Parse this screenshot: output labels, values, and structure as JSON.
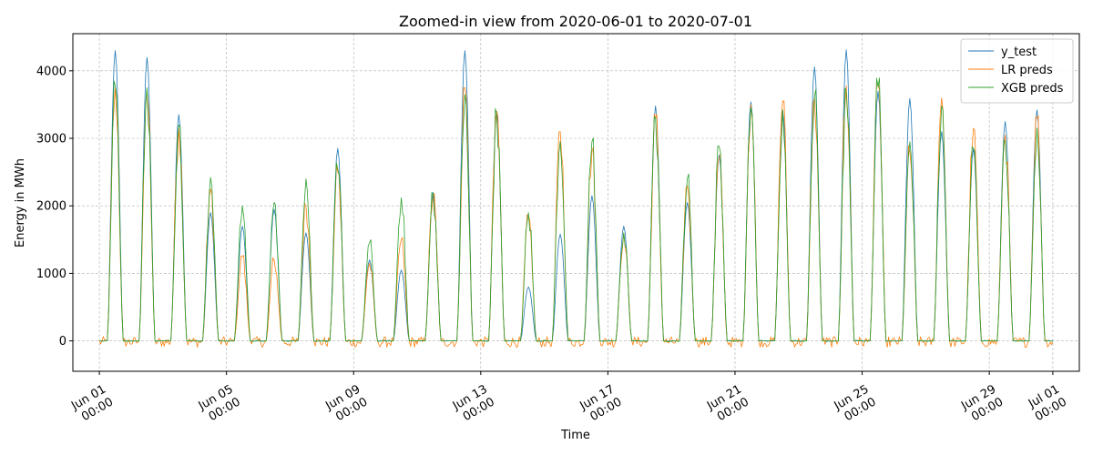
{
  "chart_data": {
    "type": "line",
    "title": "Zoomed-in view from 2020-06-01 to 2020-07-01",
    "xlabel": "Time",
    "ylabel": "Energy in MWh",
    "xlim": [
      "2020-05-31T04:00",
      "2020-07-01T20:00"
    ],
    "ylim": [
      -450,
      4550
    ],
    "grid": true,
    "legend_position": "top-right",
    "x_ticks": [
      {
        "date": "2020-06-01T00:00",
        "line1": "Jun 01",
        "line2": "00:00"
      },
      {
        "date": "2020-06-05T00:00",
        "line1": "Jun 05",
        "line2": "00:00"
      },
      {
        "date": "2020-06-09T00:00",
        "line1": "Jun 09",
        "line2": "00:00"
      },
      {
        "date": "2020-06-13T00:00",
        "line1": "Jun 13",
        "line2": "00:00"
      },
      {
        "date": "2020-06-17T00:00",
        "line1": "Jun 17",
        "line2": "00:00"
      },
      {
        "date": "2020-06-21T00:00",
        "line1": "Jun 21",
        "line2": "00:00"
      },
      {
        "date": "2020-06-25T00:00",
        "line1": "Jun 25",
        "line2": "00:00"
      },
      {
        "date": "2020-06-29T00:00",
        "line1": "Jun 29",
        "line2": "00:00"
      },
      {
        "date": "2020-07-01T00:00",
        "line1": "Jul 01",
        "line2": "00:00"
      }
    ],
    "y_ticks": [
      0,
      1000,
      2000,
      3000,
      4000
    ],
    "days": [
      "2020-06-01",
      "2020-06-02",
      "2020-06-03",
      "2020-06-04",
      "2020-06-05",
      "2020-06-06",
      "2020-06-07",
      "2020-06-08",
      "2020-06-09",
      "2020-06-10",
      "2020-06-11",
      "2020-06-12",
      "2020-06-13",
      "2020-06-14",
      "2020-06-15",
      "2020-06-16",
      "2020-06-17",
      "2020-06-18",
      "2020-06-19",
      "2020-06-20",
      "2020-06-21",
      "2020-06-22",
      "2020-06-23",
      "2020-06-24",
      "2020-06-25",
      "2020-06-26",
      "2020-06-27",
      "2020-06-28",
      "2020-06-29",
      "2020-06-30"
    ],
    "series": [
      {
        "name": "y_test",
        "color": "#1f77b4",
        "daily_peaks": [
          4300,
          4200,
          3350,
          1900,
          1700,
          1950,
          1600,
          2850,
          1200,
          1050,
          2200,
          4300,
          3400,
          800,
          1580,
          2150,
          1700,
          3480,
          2050,
          2750,
          3540,
          3420,
          4060,
          4310,
          3700,
          3590,
          3100,
          2850,
          3250,
          3420
        ]
      },
      {
        "name": "LR preds",
        "color": "#ff7f0e",
        "daily_peaks": [
          3750,
          3700,
          3150,
          2250,
          1250,
          1200,
          2000,
          2500,
          1150,
          1500,
          2150,
          3750,
          3400,
          1850,
          3100,
          2800,
          1600,
          3300,
          2300,
          2700,
          3500,
          3550,
          3600,
          3780,
          3800,
          2800,
          3600,
          3150,
          3050,
          3300
        ]
      },
      {
        "name": "XGB preds",
        "color": "#2ca02c",
        "daily_peaks": [
          3780,
          3750,
          3200,
          2420,
          2000,
          2050,
          2400,
          2550,
          1450,
          2120,
          2180,
          3650,
          3350,
          1900,
          2950,
          2950,
          1600,
          3300,
          2400,
          2880,
          3450,
          3420,
          3620,
          3700,
          3760,
          2950,
          3480,
          2850,
          2950,
          3150
        ]
      }
    ]
  }
}
